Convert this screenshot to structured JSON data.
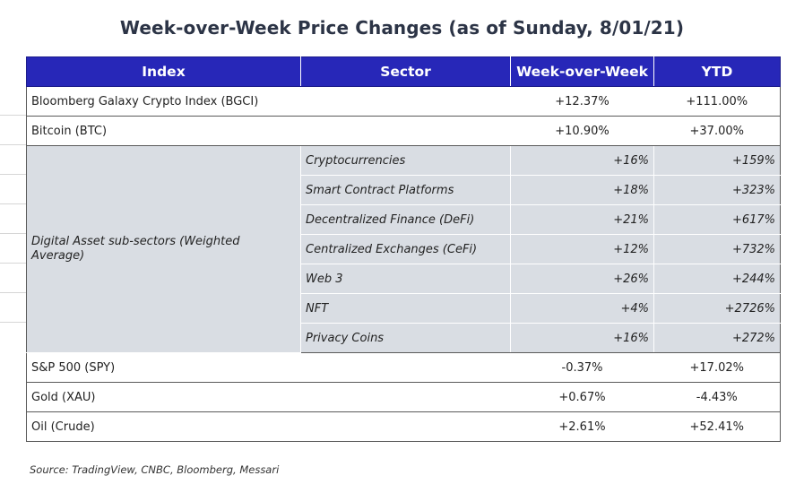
{
  "title": "Week-over-Week Price Changes (as of Sunday, 8/01/21)",
  "columns": [
    "Index",
    "Sector",
    "Week-over-Week",
    "YTD"
  ],
  "top_rows": [
    {
      "index": "Bloomberg Galaxy Crypto Index (BGCI)",
      "wow": "+12.37%",
      "ytd": "+111.00%"
    },
    {
      "index": "Bitcoin (BTC)",
      "wow": "+10.90%",
      "ytd": "+37.00%"
    }
  ],
  "sub_group": {
    "label": "Digital Asset sub-sectors (Weighted Average)",
    "rows": [
      {
        "sector": "Cryptocurrencies",
        "wow": "+16%",
        "ytd": "+159%"
      },
      {
        "sector": "Smart Contract Platforms",
        "wow": "+18%",
        "ytd": "+323%"
      },
      {
        "sector": "Decentralized Finance (DeFi)",
        "wow": "+21%",
        "ytd": "+617%"
      },
      {
        "sector": "Centralized Exchanges (CeFi)",
        "wow": "+12%",
        "ytd": "+732%"
      },
      {
        "sector": "Web 3",
        "wow": "+26%",
        "ytd": "+244%"
      },
      {
        "sector": "NFT",
        "wow": "+4%",
        "ytd": "+2726%"
      },
      {
        "sector": "Privacy Coins",
        "wow": "+16%",
        "ytd": "+272%"
      }
    ]
  },
  "bottom_rows": [
    {
      "index": "S&P 500 (SPY)",
      "wow": "-0.37%",
      "ytd": "+17.02%"
    },
    {
      "index": "Gold (XAU)",
      "wow": "+0.67%",
      "ytd": "-4.43%"
    },
    {
      "index": "Oil (Crude)",
      "wow": "+2.61%",
      "ytd": "+52.41%"
    }
  ],
  "source": "Source: TradingView, CNBC, Bloomberg, Messari",
  "colors": {
    "header_bg": "#2727b8",
    "header_text": "#ffffff",
    "subsector_bg": "#d9dde3",
    "title_text": "#2c3446"
  }
}
